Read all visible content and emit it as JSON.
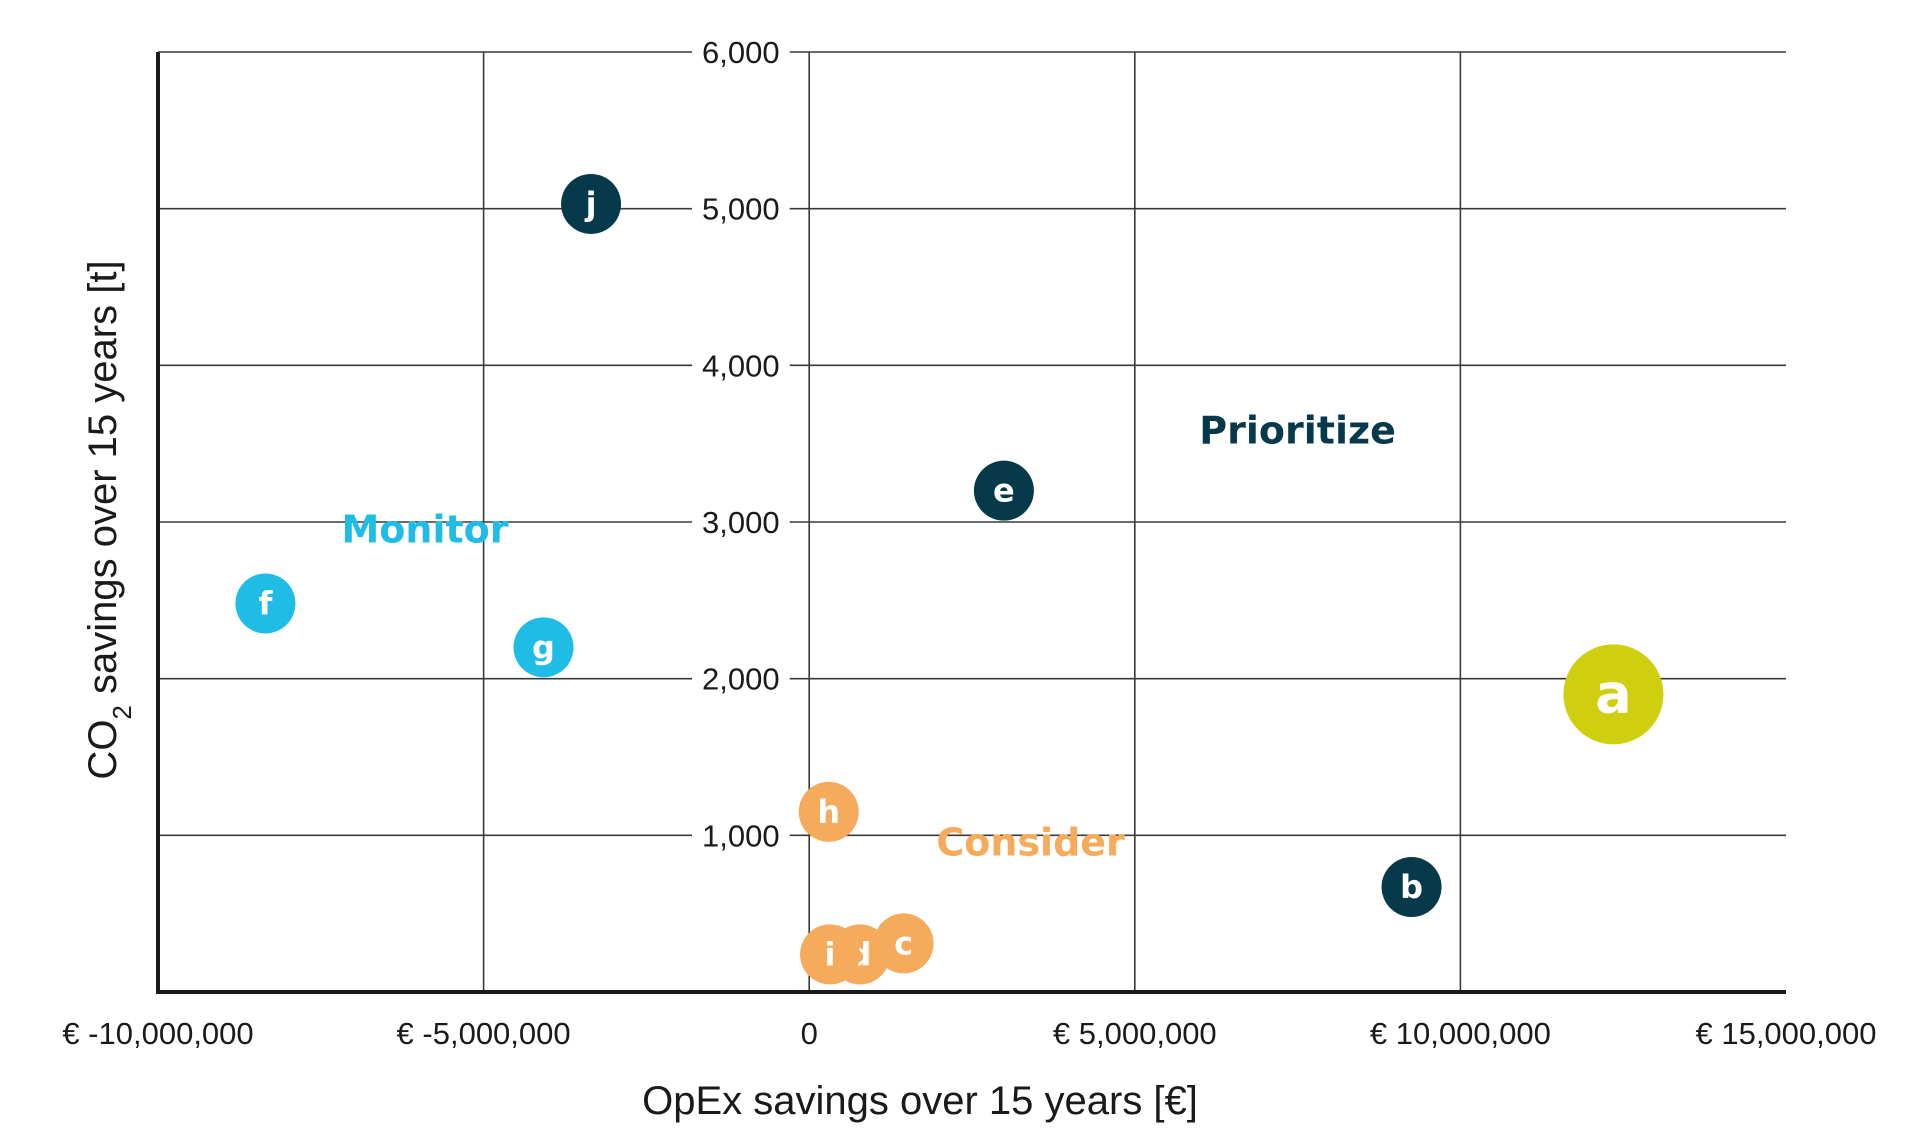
{
  "chart_data": {
    "type": "scatter",
    "xlabel": "OpEx savings over 15 years [€]",
    "ylabel_parts": {
      "pre": "CO",
      "sub": "2",
      "post": " savings over 15 years [t]"
    },
    "xlim": [
      -10000000,
      15000000
    ],
    "ylim": [
      0,
      6000
    ],
    "grid": true,
    "x_ticks": [
      {
        "value": -10000000,
        "label": "€ -10,000,000"
      },
      {
        "value": -5000000,
        "label": "€ -5,000,000"
      },
      {
        "value": 0,
        "label": "0"
      },
      {
        "value": 5000000,
        "label": "€ 5,000,000"
      },
      {
        "value": 10000000,
        "label": "€ 10,000,000"
      },
      {
        "value": 15000000,
        "label": "€ 15,000,000"
      }
    ],
    "y_ticks": [
      {
        "value": 1000,
        "label": "1,000"
      },
      {
        "value": 2000,
        "label": "2,000"
      },
      {
        "value": 3000,
        "label": "3,000"
      },
      {
        "value": 4000,
        "label": "4,000"
      },
      {
        "value": 5000,
        "label": "5,000"
      },
      {
        "value": 6000,
        "label": "6,000"
      }
    ],
    "colors": {
      "prioritize": "#063a4b",
      "monitor": "#1fbce6",
      "consider": "#f5aa5c",
      "highlight": "#cfcf10",
      "axis": "#1a1a1a",
      "grid": "#3a3a3a"
    },
    "regions": [
      {
        "label": "Prioritize",
        "group": "prioritize",
        "x": 7500000,
        "y": 3500000
      },
      {
        "label": "Monitor",
        "group": "monitor",
        "x": -5900000,
        "y": 2870
      },
      {
        "label": "Consider",
        "group": "consider",
        "x": 3400000,
        "y": 870
      }
    ],
    "points": [
      {
        "label": "a",
        "x": 12350000,
        "y": 1900,
        "group": "highlight",
        "size": "large"
      },
      {
        "label": "b",
        "x": 9250000,
        "y": 670,
        "group": "prioritize",
        "size": "normal"
      },
      {
        "label": "c",
        "x": 1450000,
        "y": 310,
        "group": "consider",
        "size": "normal"
      },
      {
        "label": "d",
        "x": 780000,
        "y": 240,
        "group": "consider",
        "size": "normal"
      },
      {
        "label": "e",
        "x": 2990000,
        "y": 3200,
        "group": "prioritize",
        "size": "normal"
      },
      {
        "label": "f",
        "x": -8350000,
        "y": 2480,
        "group": "monitor",
        "size": "normal"
      },
      {
        "label": "g",
        "x": -4080000,
        "y": 2200,
        "group": "monitor",
        "size": "normal"
      },
      {
        "label": "h",
        "x": 300000,
        "y": 1150,
        "group": "consider",
        "size": "normal"
      },
      {
        "label": "i",
        "x": 320000,
        "y": 240,
        "group": "consider",
        "size": "normal"
      },
      {
        "label": "j",
        "x": -3350000,
        "y": 5030,
        "group": "prioritize",
        "size": "normal"
      }
    ]
  }
}
